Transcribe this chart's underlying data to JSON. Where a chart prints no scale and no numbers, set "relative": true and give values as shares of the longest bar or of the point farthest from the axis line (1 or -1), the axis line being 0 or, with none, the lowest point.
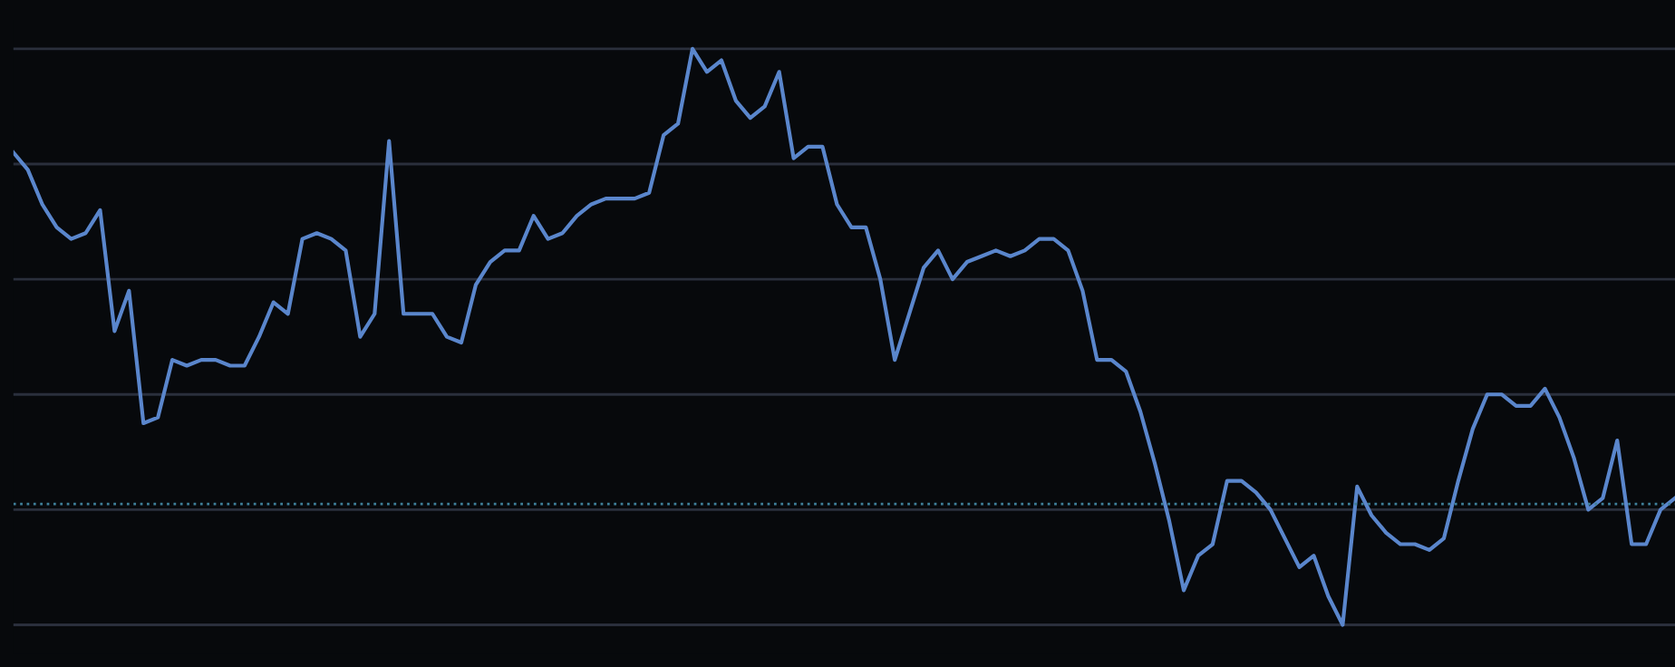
{
  "chart_data": {
    "type": "line",
    "relative": true,
    "grid": "y",
    "legend": false,
    "categories": [
      null,
      null,
      null,
      null,
      null,
      null,
      null,
      null,
      null,
      null,
      null,
      null,
      null,
      null,
      null,
      null,
      null,
      null,
      null,
      null,
      null,
      null,
      null,
      null,
      null,
      null,
      null,
      null,
      null,
      null,
      null,
      null,
      null,
      null,
      null,
      null,
      null,
      null,
      null,
      null,
      null,
      null,
      null,
      null,
      null,
      null,
      null,
      null,
      null,
      null,
      null,
      null,
      null,
      null,
      null,
      null,
      null,
      null,
      null,
      null,
      null,
      null,
      null,
      null,
      null,
      null,
      null,
      null,
      null,
      null,
      null,
      null,
      null,
      null,
      null,
      null,
      null,
      null,
      null,
      null,
      null,
      null,
      null,
      null,
      null,
      null,
      null,
      null,
      null,
      null,
      null,
      null,
      null,
      null,
      null,
      null,
      null,
      null,
      null,
      null,
      null,
      null,
      null,
      null,
      null,
      null,
      null,
      null,
      null,
      null,
      null,
      null,
      null,
      null,
      null,
      null
    ],
    "series": [
      {
        "color": "#5a86cc",
        "values": [
          0.82,
          0.79,
          0.73,
          0.69,
          0.67,
          0.68,
          0.72,
          0.51,
          0.58,
          0.35,
          0.36,
          0.46,
          0.45,
          0.46,
          0.46,
          0.45,
          0.45,
          0.5,
          0.56,
          0.54,
          0.67,
          0.68,
          0.67,
          0.65,
          0.5,
          0.54,
          0.84,
          0.54,
          0.54,
          0.54,
          0.5,
          0.49,
          0.59,
          0.63,
          0.65,
          0.65,
          0.71,
          0.67,
          0.68,
          0.71,
          0.73,
          0.74,
          0.74,
          0.74,
          0.75,
          0.85,
          0.87,
          1.0,
          0.96,
          0.98,
          0.91,
          0.88,
          0.9,
          0.96,
          0.81,
          0.83,
          0.83,
          0.73,
          0.69,
          0.69,
          0.6,
          0.46,
          0.54,
          0.62,
          0.65,
          0.6,
          0.63,
          0.64,
          0.65,
          0.64,
          0.65,
          0.67,
          0.67,
          0.65,
          0.58,
          0.46,
          0.46,
          0.44,
          0.37,
          0.28,
          0.18,
          0.06,
          0.12,
          0.14,
          0.25,
          0.25,
          0.23,
          0.2,
          0.15,
          0.1,
          0.12,
          0.05,
          0.0,
          0.24,
          0.19,
          0.16,
          0.14,
          0.14,
          0.13,
          0.15,
          0.25,
          0.34,
          0.4,
          0.4,
          0.38,
          0.38,
          0.41,
          0.36,
          0.29,
          0.2,
          0.22,
          0.32,
          0.14,
          0.14,
          0.2,
          0.22
        ]
      }
    ],
    "ref_lines": [
      {
        "axis": "y",
        "value": 0.21,
        "color": "#3f7f99",
        "line_style": "dotted"
      }
    ]
  }
}
